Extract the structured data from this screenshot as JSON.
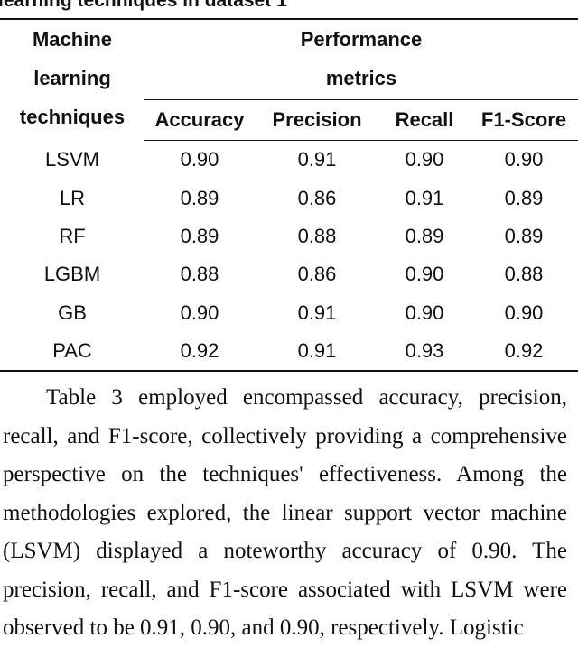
{
  "caption": "learning techniques in dataset 1",
  "table": {
    "header_row_label": [
      "Machine",
      "learning",
      "techniques"
    ],
    "group_header": [
      "Performance",
      "metrics"
    ],
    "metric_headers": [
      "Accuracy",
      "Precision",
      "Recall",
      "F1-Score"
    ],
    "rows": [
      {
        "technique": "LSVM",
        "values": [
          "0.90",
          "0.91",
          "0.90",
          "0.90"
        ]
      },
      {
        "technique": "LR",
        "values": [
          "0.89",
          "0.86",
          "0.91",
          "0.89"
        ]
      },
      {
        "technique": "RF",
        "values": [
          "0.89",
          "0.88",
          "0.89",
          "0.89"
        ]
      },
      {
        "technique": "LGBM",
        "values": [
          "0.88",
          "0.86",
          "0.90",
          "0.88"
        ]
      },
      {
        "technique": "GB",
        "values": [
          "0.90",
          "0.91",
          "0.90",
          "0.90"
        ]
      },
      {
        "technique": "PAC",
        "values": [
          "0.92",
          "0.91",
          "0.93",
          "0.92"
        ]
      }
    ]
  },
  "paragraph": "Table 3 employed encompassed accuracy, precision, recall, and F1-score, collectively providing a comprehensive perspective on the techniques' effectiveness. Among the methodologies explored, the linear support vector machine (LSVM) displayed a noteworthy accuracy of 0.90. The precision, recall, and F1-score associated with LSVM were observed to be 0.91, 0.90, and 0.90, respectively. Logistic"
}
